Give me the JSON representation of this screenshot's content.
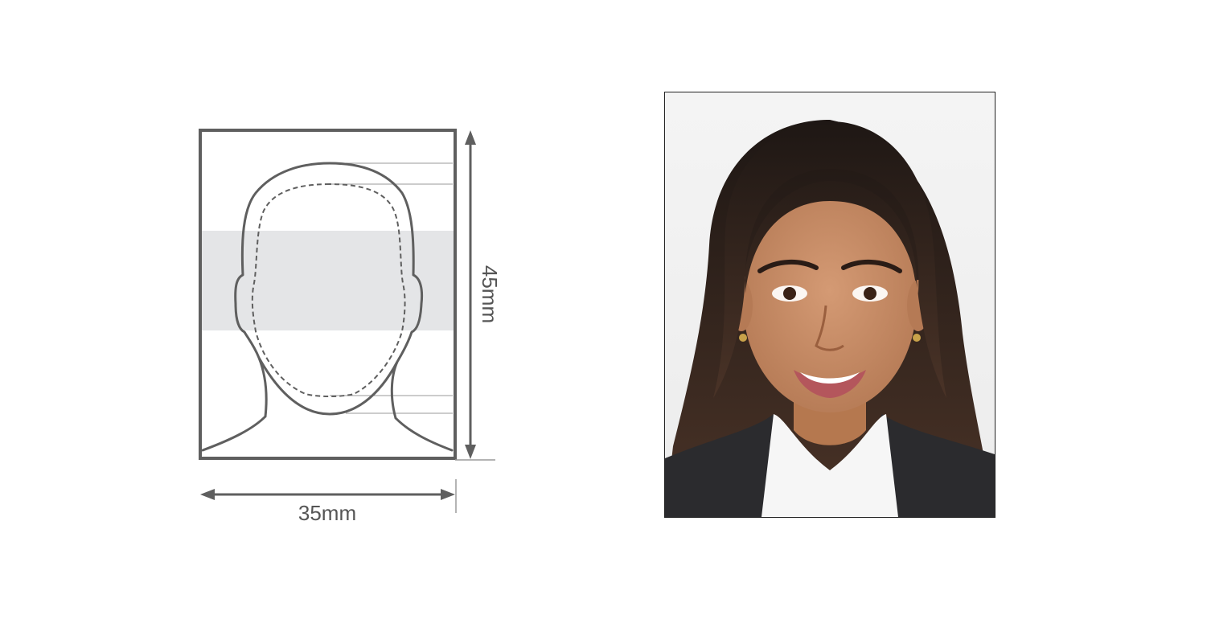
{
  "diagram": {
    "width_label": "35mm",
    "height_label": "45mm"
  },
  "photo": {
    "subject": "portrait-photo"
  },
  "colors": {
    "outline": "#5f5f5f",
    "band": "#e4e5e7",
    "background": "#ffffff"
  }
}
